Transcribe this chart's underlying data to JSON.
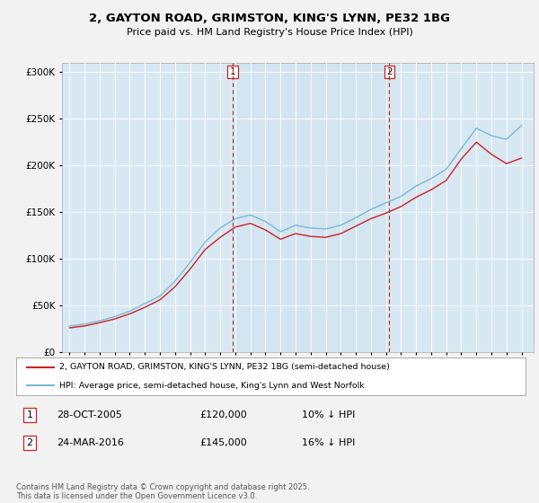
{
  "title_line1": "2, GAYTON ROAD, GRIMSTON, KING'S LYNN, PE32 1BG",
  "title_line2": "Price paid vs. HM Land Registry's House Price Index (HPI)",
  "legend_line1": "2, GAYTON ROAD, GRIMSTON, KING'S LYNN, PE32 1BG (semi-detached house)",
  "legend_line2": "HPI: Average price, semi-detached house, King's Lynn and West Norfolk",
  "footnote": "Contains HM Land Registry data © Crown copyright and database right 2025.\nThis data is licensed under the Open Government Licence v3.0.",
  "marker1_label": "1",
  "marker1_date": "28-OCT-2005",
  "marker1_price": "£120,000",
  "marker1_hpi": "10% ↓ HPI",
  "marker1_x": 2005.83,
  "marker2_label": "2",
  "marker2_date": "24-MAR-2016",
  "marker2_price": "£145,000",
  "marker2_hpi": "16% ↓ HPI",
  "marker2_x": 2016.23,
  "hpi_color": "#7bb8d4",
  "price_color": "#cc2222",
  "marker_color": "#cc2222",
  "background_chart": "#d8e8f3",
  "background_fig": "#f2f2f2",
  "ylim": [
    0,
    310000
  ],
  "yticks": [
    0,
    50000,
    100000,
    150000,
    200000,
    250000,
    300000
  ],
  "xlim": [
    1994.5,
    2025.8
  ],
  "years": [
    1995,
    1996,
    1997,
    1998,
    1999,
    2000,
    2001,
    2002,
    2003,
    2004,
    2005,
    2006,
    2007,
    2008,
    2009,
    2010,
    2011,
    2012,
    2013,
    2014,
    2015,
    2016,
    2017,
    2018,
    2019,
    2020,
    2021,
    2022,
    2023,
    2024,
    2025
  ],
  "hpi_values": [
    28000,
    30000,
    33500,
    38000,
    44000,
    52000,
    60000,
    76000,
    96000,
    118000,
    133000,
    143000,
    147000,
    140000,
    129000,
    136000,
    133000,
    132000,
    136000,
    144000,
    153000,
    160000,
    167000,
    178000,
    186000,
    196000,
    218000,
    240000,
    232000,
    228000,
    243000
  ],
  "price_values": [
    26000,
    28000,
    31500,
    35500,
    41000,
    48000,
    56000,
    70000,
    89000,
    110000,
    123000,
    134000,
    138000,
    131000,
    121000,
    127000,
    124000,
    123000,
    127000,
    135000,
    143000,
    149000,
    156000,
    166000,
    174000,
    184000,
    207000,
    225000,
    212000,
    202000,
    208000
  ]
}
